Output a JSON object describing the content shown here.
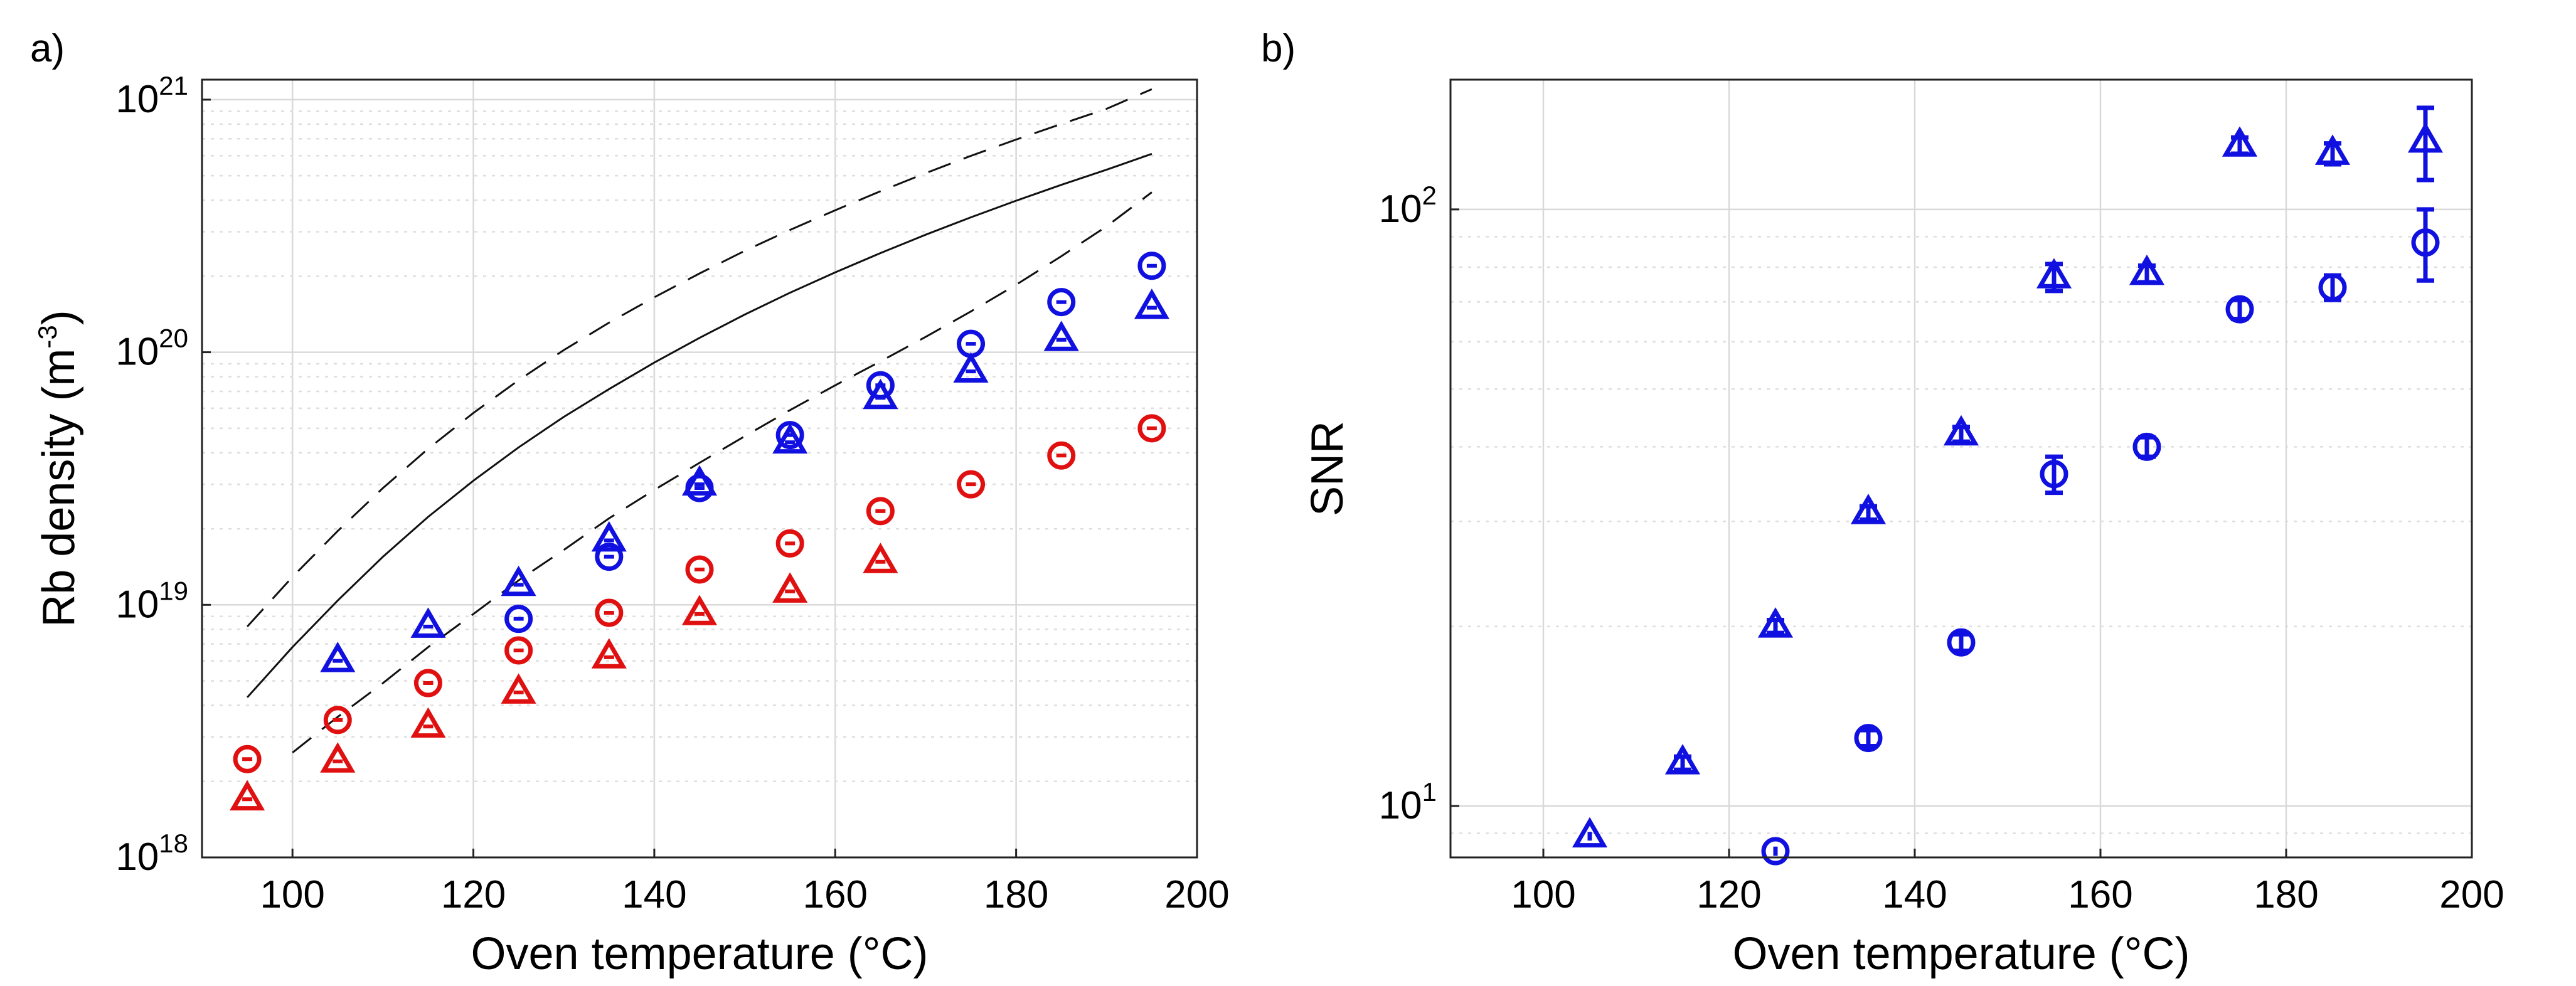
{
  "colors": {
    "series_a": "#e01010",
    "series_b": "#1010e0",
    "model": "#111111"
  },
  "chart_data": [
    {
      "type": "scatter",
      "panel_label": "a)",
      "xlabel": "Oven temperature (°C)",
      "ylabel": "Rb density (m",
      "ylabel_exp": "-3",
      "ylabel_close": ")",
      "xlim": [
        90,
        200
      ],
      "ylim": [
        1e+18,
        1.2e+21
      ],
      "yscale": "log",
      "xticks": [
        100,
        120,
        140,
        160,
        180,
        200
      ],
      "yticks": [
        {
          "value": 1e+18,
          "base": "10",
          "exp": "18"
        },
        {
          "value": 1e+19,
          "base": "10",
          "exp": "19"
        },
        {
          "value": 1e+20,
          "base": "10",
          "exp": "20"
        },
        {
          "value": 1e+21,
          "base": "10",
          "exp": "21"
        }
      ],
      "series": [
        {
          "name": "blue circles",
          "marker": "circle",
          "color": "#1010e0",
          "x": [
            125,
            135,
            145,
            155,
            165,
            175,
            185,
            195
          ],
          "y": [
            8.8e+18,
            1.55e+19,
            2.9e+19,
            4.7e+19,
            7.4e+19,
            1.08e+20,
            1.58e+20,
            2.2e+20
          ]
        },
        {
          "name": "blue triangles",
          "marker": "triangle",
          "color": "#1010e0",
          "x": [
            105,
            115,
            125,
            135,
            145,
            155,
            165,
            175,
            185,
            195
          ],
          "y": [
            6e+18,
            8.2e+18,
            1.2e+19,
            1.8e+19,
            3e+19,
            4.4e+19,
            6.6e+19,
            8.4e+19,
            1.12e+20,
            1.5e+20
          ]
        },
        {
          "name": "red circles",
          "marker": "circle",
          "color": "#e01010",
          "x": [
            95,
            105,
            115,
            125,
            135,
            145,
            155,
            165,
            175,
            185,
            195
          ],
          "y": [
            2.45e+18,
            3.5e+18,
            4.9e+18,
            6.6e+18,
            9.3e+18,
            1.38e+19,
            1.75e+19,
            2.35e+19,
            3e+19,
            3.9e+19,
            5e+19
          ]
        },
        {
          "name": "red triangles",
          "marker": "triangle",
          "color": "#e01010",
          "x": [
            95,
            105,
            115,
            125,
            135,
            145,
            155,
            165
          ],
          "y": [
            1.7e+18,
            2.4e+18,
            3.3e+18,
            4.5e+18,
            6.2e+18,
            9.2e+18,
            1.13e+19,
            1.48e+19
          ]
        },
        {
          "name": "model",
          "marker": "line",
          "color": "#111111",
          "x": [
            95,
            100,
            105,
            110,
            115,
            120,
            125,
            130,
            135,
            140,
            145,
            150,
            155,
            160,
            165,
            170,
            175,
            180,
            185,
            190,
            195
          ],
          "y": [
            4.3e+18,
            6.8e+18,
            1.04e+19,
            1.55e+19,
            2.23e+19,
            3.1e+19,
            4.2e+19,
            5.55e+19,
            7.15e+19,
            9.1e+19,
            1.14e+20,
            1.41e+20,
            1.72e+20,
            2.07e+20,
            2.47e+20,
            2.92e+20,
            3.42e+20,
            3.98e+20,
            4.6e+20,
            5.28e+20,
            6.1e+20
          ]
        },
        {
          "name": "model upper bound",
          "marker": "dashed",
          "color": "#111111",
          "x": [
            95,
            100,
            105,
            110,
            115,
            120,
            125,
            130,
            135,
            140,
            145,
            150,
            155,
            160,
            165,
            170,
            175,
            180,
            185,
            190,
            195
          ],
          "y": [
            8.2e+18,
            1.29e+19,
            1.96e+19,
            2.9e+19,
            4.15e+19,
            5.75e+19,
            7.75e+19,
            1.02e+20,
            1.31e+20,
            1.65e+20,
            2.05e+20,
            2.52e+20,
            3.05e+20,
            3.65e+20,
            4.34e+20,
            5.12e+20,
            5.99e+20,
            6.95e+20,
            8.01e+20,
            9.2e+20,
            1.1e+21
          ]
        },
        {
          "name": "model lower bound",
          "marker": "dashed",
          "color": "#111111",
          "x": [
            100,
            105,
            110,
            115,
            120,
            125,
            130,
            135,
            140,
            145,
            150,
            155,
            160,
            165,
            170,
            175,
            180,
            185,
            190,
            195
          ],
          "y": [
            2.6e+18,
            3.6e+18,
            4.9e+18,
            6.8e+18,
            9.2e+18,
            1.25e+19,
            1.65e+19,
            2.2e+19,
            2.85e+19,
            3.65e+19,
            4.65e+19,
            5.9e+19,
            7.4e+19,
            9.2e+19,
            1.15e+20,
            1.45e+20,
            1.85e+20,
            2.4e+20,
            3.15e+20,
            4.3e+20
          ]
        }
      ]
    },
    {
      "type": "scatter",
      "panel_label": "b)",
      "xlabel": "Oven temperature (°C)",
      "ylabel": "SNR",
      "xlim": [
        90,
        200
      ],
      "ylim": [
        8.2,
        165
      ],
      "yscale": "log",
      "xticks": [
        100,
        120,
        140,
        160,
        180,
        200
      ],
      "yticks": [
        {
          "value": 10,
          "base": "10",
          "exp": "1"
        },
        {
          "value": 100,
          "base": "10",
          "exp": "2"
        }
      ],
      "series": [
        {
          "name": "triangles",
          "marker": "triangle",
          "color": "#1010e0",
          "x": [
            105,
            115,
            125,
            135,
            145,
            155,
            165,
            175,
            185,
            195
          ],
          "y": [
            8.9,
            11.8,
            20,
            31,
            42,
            77,
            78,
            128,
            124,
            130
          ],
          "err": [
            0.15,
            0.3,
            0.5,
            0.8,
            1.2,
            4,
            2.5,
            4,
            5,
            18
          ]
        },
        {
          "name": "circles",
          "marker": "circle",
          "color": "#1010e0",
          "x": [
            125,
            135,
            145,
            155,
            165,
            175,
            185,
            195
          ],
          "y": [
            8.4,
            13,
            18.8,
            36,
            40,
            68,
            74,
            88
          ],
          "err": [
            0.15,
            0.4,
            0.6,
            2.5,
            1.5,
            2.5,
            3.5,
            12
          ]
        }
      ]
    }
  ]
}
